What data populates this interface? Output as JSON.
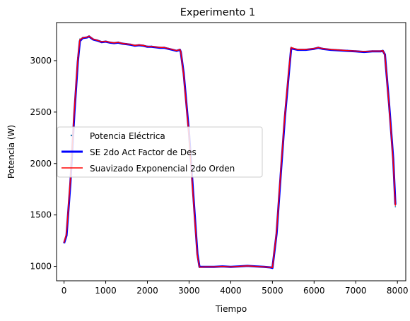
{
  "chart_data": {
    "type": "line",
    "title": "Experimento 1",
    "xlabel": "Tiempo",
    "ylabel": "Potencia (W)",
    "xlim": [
      -180,
      8200
    ],
    "ylim": [
      860,
      3370
    ],
    "xticks": [
      0,
      1000,
      2000,
      3000,
      4000,
      5000,
      6000,
      7000,
      8000
    ],
    "yticks": [
      1000,
      1500,
      2000,
      2500,
      3000
    ],
    "grid": false,
    "legend_position": "center-left",
    "series": [
      {
        "name": "Potencia Eléctrica",
        "style": "points",
        "color": "#1f77b4",
        "x": [
          0,
          60,
          150,
          250,
          330,
          380,
          450,
          550,
          600,
          700,
          800,
          900,
          1000,
          1100,
          1200,
          1300,
          1400,
          1500,
          1600,
          1700,
          1800,
          1900,
          2000,
          2100,
          2200,
          2300,
          2400,
          2500,
          2600,
          2700,
          2780,
          2800,
          2870,
          3000,
          3100,
          3200,
          3250,
          3400,
          3600,
          3800,
          4000,
          4200,
          4400,
          4600,
          4800,
          4950,
          5000,
          5100,
          5200,
          5300,
          5400,
          5450,
          5600,
          5800,
          6000,
          6100,
          6200,
          6400,
          6600,
          6800,
          7000,
          7200,
          7400,
          7600,
          7650,
          7700,
          7800,
          7900,
          7950
        ],
        "y": [
          1230,
          1330,
          1850,
          2550,
          3030,
          3210,
          3225,
          3230,
          3240,
          3210,
          3200,
          3185,
          3190,
          3180,
          3175,
          3180,
          3170,
          3165,
          3160,
          3150,
          3155,
          3150,
          3140,
          3140,
          3135,
          3130,
          3130,
          3120,
          3110,
          3100,
          3110,
          3090,
          2850,
          2250,
          1650,
          1090,
          990,
          995,
          995,
          1000,
          995,
          1000,
          1005,
          1000,
          995,
          990,
          990,
          1350,
          1950,
          2500,
          2950,
          3130,
          3110,
          3110,
          3120,
          3130,
          3120,
          3110,
          3105,
          3100,
          3095,
          3090,
          3095,
          3095,
          3100,
          3050,
          2550,
          2000,
          1580
        ]
      },
      {
        "name": "SE 2do Act Factor de Des",
        "style": "line",
        "color": "#0000ff",
        "x": [
          0,
          60,
          150,
          250,
          330,
          380,
          450,
          550,
          600,
          700,
          800,
          900,
          1000,
          1100,
          1200,
          1300,
          1400,
          1500,
          1600,
          1700,
          1800,
          1900,
          2000,
          2100,
          2200,
          2300,
          2400,
          2500,
          2600,
          2700,
          2780,
          2800,
          2870,
          3000,
          3100,
          3200,
          3250,
          3400,
          3600,
          3800,
          4000,
          4200,
          4400,
          4600,
          4800,
          4950,
          5000,
          5100,
          5200,
          5300,
          5400,
          5450,
          5600,
          5800,
          6000,
          6100,
          6200,
          6400,
          6600,
          6800,
          7000,
          7200,
          7400,
          7600,
          7650,
          7700,
          7800,
          7900,
          7950
        ],
        "y": [
          1225,
          1300,
          1800,
          2500,
          2990,
          3190,
          3220,
          3225,
          3235,
          3205,
          3195,
          3180,
          3185,
          3175,
          3170,
          3175,
          3165,
          3160,
          3155,
          3145,
          3150,
          3145,
          3135,
          3135,
          3130,
          3125,
          3125,
          3115,
          3105,
          3095,
          3105,
          3085,
          2880,
          2290,
          1700,
          1120,
          995,
          995,
          995,
          1000,
          995,
          1000,
          1005,
          1000,
          995,
          990,
          985,
          1320,
          1900,
          2450,
          2900,
          3120,
          3105,
          3105,
          3115,
          3125,
          3115,
          3105,
          3100,
          3095,
          3090,
          3085,
          3090,
          3090,
          3095,
          3060,
          2580,
          2040,
          1600
        ]
      },
      {
        "name": "Suavizado Exponencial 2do Orden",
        "style": "line",
        "color": "#ff0000",
        "x": [
          0,
          60,
          150,
          250,
          330,
          380,
          450,
          550,
          600,
          700,
          800,
          900,
          1000,
          1100,
          1200,
          1300,
          1400,
          1500,
          1600,
          1700,
          1800,
          1900,
          2000,
          2100,
          2200,
          2300,
          2400,
          2500,
          2600,
          2700,
          2780,
          2800,
          2870,
          3000,
          3100,
          3200,
          3250,
          3400,
          3600,
          3800,
          4000,
          4200,
          4400,
          4600,
          4800,
          4950,
          5000,
          5100,
          5200,
          5300,
          5400,
          5450,
          5600,
          5800,
          6000,
          6100,
          6200,
          6400,
          6600,
          6800,
          7000,
          7200,
          7400,
          7600,
          7650,
          7700,
          7800,
          7900,
          7950
        ],
        "y": [
          1230,
          1320,
          1840,
          2540,
          3020,
          3205,
          3222,
          3228,
          3238,
          3208,
          3198,
          3183,
          3188,
          3178,
          3173,
          3178,
          3168,
          3163,
          3158,
          3148,
          3153,
          3148,
          3138,
          3138,
          3133,
          3128,
          3128,
          3118,
          3108,
          3098,
          3108,
          3088,
          2860,
          2260,
          1660,
          1100,
          992,
          995,
          995,
          1000,
          995,
          1000,
          1005,
          1000,
          995,
          990,
          988,
          1340,
          1930,
          2480,
          2930,
          3128,
          3108,
          3108,
          3118,
          3128,
          3118,
          3108,
          3103,
          3098,
          3093,
          3088,
          3093,
          3093,
          3098,
          3055,
          2560,
          2010,
          1590
        ]
      }
    ]
  }
}
